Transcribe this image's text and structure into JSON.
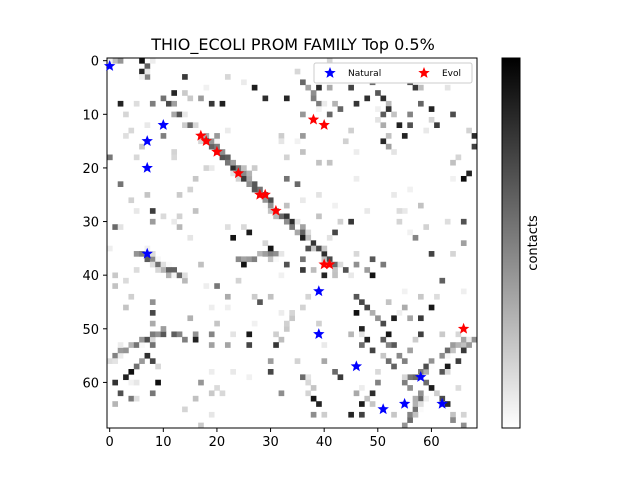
{
  "chart_data": {
    "type": "heatmap",
    "title": "THIO_ECOLI PROM FAMILY Top 0.5%",
    "xlabel": "",
    "ylabel": "",
    "n": 69,
    "xlim": [
      -0.5,
      68.5
    ],
    "ylim": [
      68.5,
      -0.5
    ],
    "x_ticks": [
      0,
      10,
      20,
      30,
      40,
      50,
      60
    ],
    "y_ticks": [
      0,
      10,
      20,
      30,
      40,
      50,
      60
    ],
    "colormap": "gray_r",
    "colorbar_label": "contacts",
    "legend": {
      "placement": "top-right",
      "entries": [
        {
          "label": "Natural",
          "color": "#0000ff",
          "marker": "star"
        },
        {
          "label": "Evol",
          "color": "#ff0000",
          "marker": "star"
        }
      ]
    },
    "natural_points": [
      [
        0,
        1
      ],
      [
        10,
        12
      ],
      [
        7,
        15
      ],
      [
        7,
        20
      ],
      [
        7,
        36
      ],
      [
        39,
        43
      ],
      [
        39,
        51
      ],
      [
        46,
        57
      ],
      [
        58,
        59
      ],
      [
        51,
        65
      ],
      [
        55,
        64
      ],
      [
        62,
        64
      ]
    ],
    "evol_points": [
      [
        17,
        14
      ],
      [
        18,
        15
      ],
      [
        20,
        17
      ],
      [
        24,
        21
      ],
      [
        28,
        25
      ],
      [
        29,
        25
      ],
      [
        31,
        28
      ],
      [
        38,
        11
      ],
      [
        40,
        12
      ],
      [
        40,
        38
      ],
      [
        41,
        38
      ],
      [
        66,
        50
      ]
    ],
    "diagonal_bands": [
      {
        "start": [
          10,
          7
        ],
        "end": [
          42,
          38
        ],
        "weight": 0.85
      },
      {
        "start": [
          16,
          12
        ],
        "end": [
          36,
          33
        ],
        "weight": 0.6
      },
      {
        "start": [
          4,
          35
        ],
        "end": [
          13,
          40
        ],
        "weight": 0.75
      },
      {
        "start": [
          36,
          4
        ],
        "end": [
          42,
          12
        ],
        "weight": 0.6
      },
      {
        "start": [
          55,
          60
        ],
        "end": [
          66,
          52
        ],
        "weight": 0.7
      },
      {
        "start": [
          0,
          55
        ],
        "end": [
          10,
          50
        ],
        "weight": 0.55
      },
      {
        "start": [
          55,
          68
        ],
        "end": [
          58,
          62
        ],
        "weight": 0.6
      },
      {
        "start": [
          24,
          37
        ],
        "end": [
          31,
          36
        ],
        "weight": 0.55
      }
    ],
    "scattered_cells": [
      [
        1,
        0
      ],
      [
        2,
        0
      ],
      [
        6,
        0
      ],
      [
        7,
        1
      ],
      [
        6,
        2
      ],
      [
        7,
        3
      ],
      [
        12,
        6
      ],
      [
        14,
        6
      ],
      [
        14,
        3
      ],
      [
        8,
        8
      ],
      [
        10,
        14
      ],
      [
        17,
        7
      ],
      [
        19,
        8
      ],
      [
        21,
        8
      ],
      [
        20,
        14
      ],
      [
        22,
        18
      ],
      [
        26,
        21
      ],
      [
        27,
        24
      ],
      [
        33,
        22
      ],
      [
        35,
        23
      ],
      [
        33,
        18
      ],
      [
        36,
        10
      ],
      [
        36,
        14
      ],
      [
        39,
        5
      ],
      [
        41,
        5
      ],
      [
        42,
        8
      ],
      [
        43,
        9
      ],
      [
        46,
        8
      ],
      [
        48,
        7
      ],
      [
        50,
        6
      ],
      [
        51,
        7
      ],
      [
        52,
        8
      ],
      [
        52,
        9
      ],
      [
        53,
        10
      ],
      [
        56,
        4
      ],
      [
        57,
        5
      ],
      [
        58,
        5
      ],
      [
        58,
        8
      ],
      [
        56,
        10
      ],
      [
        55,
        14
      ],
      [
        51,
        10
      ],
      [
        51,
        12
      ],
      [
        51,
        15
      ],
      [
        52,
        16
      ],
      [
        54,
        12
      ],
      [
        56,
        12
      ],
      [
        68,
        14
      ],
      [
        68,
        16
      ],
      [
        65,
        18
      ],
      [
        67,
        21
      ],
      [
        66,
        22
      ],
      [
        8,
        28
      ],
      [
        8,
        30
      ],
      [
        13,
        31
      ],
      [
        14,
        41
      ],
      [
        15,
        48
      ],
      [
        16,
        51
      ],
      [
        16,
        52
      ],
      [
        8,
        45
      ],
      [
        8,
        47
      ],
      [
        8,
        49
      ],
      [
        9,
        51
      ],
      [
        10,
        51
      ],
      [
        12,
        51
      ],
      [
        13,
        51
      ],
      [
        14,
        52
      ],
      [
        19,
        51
      ],
      [
        19,
        53
      ],
      [
        22,
        53
      ],
      [
        26,
        51
      ],
      [
        26,
        53
      ],
      [
        17,
        60
      ],
      [
        16,
        63
      ],
      [
        7,
        52
      ],
      [
        7,
        55
      ],
      [
        8,
        53
      ],
      [
        8,
        56
      ],
      [
        9,
        57
      ],
      [
        6,
        56
      ],
      [
        5,
        57
      ],
      [
        4,
        58
      ],
      [
        3,
        59
      ],
      [
        1,
        60
      ],
      [
        1,
        64
      ],
      [
        2,
        62
      ],
      [
        4,
        63
      ],
      [
        8,
        62
      ],
      [
        9,
        60
      ],
      [
        23,
        33
      ],
      [
        26,
        32
      ],
      [
        29,
        34
      ],
      [
        30,
        35
      ],
      [
        31,
        36
      ],
      [
        33,
        38
      ],
      [
        36,
        39
      ],
      [
        40,
        40
      ],
      [
        44,
        39
      ],
      [
        46,
        38
      ],
      [
        48,
        39
      ],
      [
        49,
        40
      ],
      [
        46,
        44
      ],
      [
        47,
        45
      ],
      [
        48,
        46
      ],
      [
        49,
        47
      ],
      [
        50,
        48
      ],
      [
        51,
        49
      ],
      [
        52,
        51
      ],
      [
        53,
        53
      ],
      [
        54,
        55
      ],
      [
        55,
        56
      ],
      [
        47,
        50
      ],
      [
        48,
        52
      ],
      [
        49,
        54
      ],
      [
        47,
        53
      ],
      [
        45,
        51
      ],
      [
        46,
        47
      ],
      [
        49,
        37
      ],
      [
        51,
        38
      ],
      [
        36,
        37
      ],
      [
        38,
        39
      ],
      [
        37,
        35
      ],
      [
        36,
        33
      ],
      [
        53,
        48
      ],
      [
        56,
        48
      ],
      [
        58,
        48
      ],
      [
        58,
        51
      ],
      [
        57,
        52
      ],
      [
        56,
        54
      ],
      [
        53,
        57
      ],
      [
        51,
        52
      ],
      [
        52,
        53
      ],
      [
        51,
        55
      ],
      [
        52,
        56
      ],
      [
        55,
        60
      ],
      [
        56,
        61
      ],
      [
        57,
        63
      ],
      [
        59,
        60
      ],
      [
        60,
        61
      ],
      [
        61,
        62
      ],
      [
        62,
        63
      ],
      [
        63,
        64
      ],
      [
        64,
        66
      ],
      [
        62,
        58
      ],
      [
        63,
        57
      ],
      [
        65,
        56
      ],
      [
        66,
        54
      ],
      [
        67,
        53
      ],
      [
        68,
        52
      ],
      [
        64,
        67
      ],
      [
        66,
        68
      ],
      [
        50,
        60
      ],
      [
        49,
        62
      ],
      [
        48,
        63
      ],
      [
        47,
        64
      ],
      [
        46,
        62
      ],
      [
        45,
        66
      ],
      [
        47,
        66
      ],
      [
        42,
        58
      ],
      [
        43,
        59
      ],
      [
        36,
        59
      ],
      [
        38,
        63
      ],
      [
        39,
        64
      ],
      [
        38,
        66
      ],
      [
        40,
        56
      ],
      [
        34,
        48
      ],
      [
        33,
        50
      ],
      [
        32,
        52
      ],
      [
        31,
        53
      ],
      [
        30,
        56
      ],
      [
        30,
        58
      ],
      [
        32,
        62
      ],
      [
        66,
        30
      ],
      [
        66,
        34
      ],
      [
        60,
        36
      ],
      [
        62,
        41
      ],
      [
        60,
        46
      ],
      [
        55,
        46
      ],
      [
        28,
        45
      ],
      [
        20,
        42
      ],
      [
        22,
        44
      ],
      [
        24,
        41
      ],
      [
        25,
        38
      ],
      [
        42,
        32
      ],
      [
        45,
        30
      ],
      [
        57,
        33
      ],
      [
        27,
        5
      ],
      [
        29,
        7
      ],
      [
        33,
        7
      ],
      [
        45,
        5
      ],
      [
        49,
        4
      ],
      [
        60,
        9
      ],
      [
        64,
        10
      ],
      [
        61,
        12
      ],
      [
        2,
        8
      ],
      [
        3,
        10
      ],
      [
        4,
        13
      ],
      [
        0,
        18
      ],
      [
        2,
        23
      ],
      [
        4,
        26
      ],
      [
        1,
        31
      ]
    ]
  }
}
